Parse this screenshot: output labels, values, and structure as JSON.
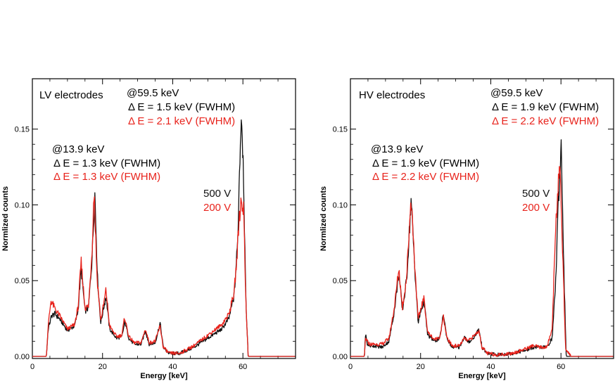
{
  "colors": {
    "series_500V": "#111111",
    "series_200V": "#e8231c",
    "axis": "#000000",
    "background": "#ffffff"
  },
  "chart_data": [
    {
      "type": "line",
      "title": "LV electrodes",
      "xlabel": "Energy [keV]",
      "ylabel": "Normlized counts",
      "xlim": [
        0,
        75
      ],
      "ylim": [
        0,
        0.18
      ],
      "x_ticks": [
        0,
        20,
        40,
        60
      ],
      "y_ticks": [
        "0.00",
        "0.05",
        "0.10",
        "0.15"
      ],
      "legend": [
        {
          "name": "500 V",
          "color": "#111111"
        },
        {
          "name": "200 V",
          "color": "#e8231c"
        }
      ],
      "annotations": {
        "peak_high": {
          "label": "@59.5 keV",
          "black": "Δ E = 1.5 keV (FWHM)",
          "red": "Δ E = 2.1 keV (FWHM)"
        },
        "peak_low": {
          "label": "@13.9 keV",
          "black": "Δ E = 1.3 keV (FWHM)",
          "red": "Δ E = 1.3 keV (FWHM)"
        }
      },
      "series": [
        {
          "name": "500 V",
          "color": "#111111",
          "x": [
            4.0,
            4.5,
            5.5,
            6.5,
            8,
            10,
            12,
            13,
            13.9,
            15,
            16,
            17,
            17.8,
            18.6,
            19.5,
            20.3,
            21,
            22,
            24,
            25.5,
            26.4,
            27.5,
            29,
            31,
            32.2,
            33.3,
            35,
            36.4,
            37.3,
            39,
            42,
            46,
            50,
            54,
            56,
            57.5,
            58.5,
            59.1,
            59.6,
            60.2,
            60.8,
            61.5,
            63,
            75
          ],
          "values": [
            0.0,
            0.018,
            0.027,
            0.028,
            0.024,
            0.017,
            0.02,
            0.03,
            0.058,
            0.03,
            0.032,
            0.065,
            0.108,
            0.05,
            0.022,
            0.032,
            0.04,
            0.018,
            0.012,
            0.013,
            0.023,
            0.012,
            0.008,
            0.008,
            0.017,
            0.008,
            0.009,
            0.022,
            0.006,
            0.002,
            0.002,
            0.006,
            0.012,
            0.018,
            0.025,
            0.04,
            0.075,
            0.13,
            0.163,
            0.12,
            0.04,
            0.0,
            0.0,
            0.0
          ]
        },
        {
          "name": "200 V",
          "color": "#e8231c",
          "x": [
            4.0,
            4.5,
            5.3,
            6.3,
            8,
            10,
            12,
            13,
            13.9,
            15,
            16,
            17,
            17.6,
            18.4,
            19.5,
            20.3,
            21,
            22,
            24,
            25.5,
            26.3,
            27.5,
            29,
            31,
            32.2,
            33.3,
            35,
            36.4,
            37.3,
            39,
            42,
            46,
            50,
            54,
            56,
            57.5,
            58.3,
            58.9,
            59.5,
            60.2,
            60.8,
            61.5,
            63,
            75
          ],
          "values": [
            0.0,
            0.02,
            0.037,
            0.032,
            0.026,
            0.018,
            0.021,
            0.032,
            0.062,
            0.032,
            0.033,
            0.07,
            0.111,
            0.053,
            0.024,
            0.034,
            0.044,
            0.02,
            0.013,
            0.014,
            0.026,
            0.013,
            0.009,
            0.009,
            0.018,
            0.009,
            0.01,
            0.02,
            0.006,
            0.002,
            0.002,
            0.007,
            0.014,
            0.021,
            0.028,
            0.042,
            0.065,
            0.09,
            0.103,
            0.098,
            0.04,
            0.0,
            0.0,
            0.0
          ]
        }
      ]
    },
    {
      "type": "line",
      "title": "HV electrodes",
      "xlabel": "Energy [keV]",
      "ylabel": "Normlized counts",
      "xlim": [
        0,
        75
      ],
      "ylim": [
        0,
        0.18
      ],
      "x_ticks": [
        0,
        20,
        40,
        60
      ],
      "y_ticks": [
        "0.00",
        "0.05",
        "0.10",
        "0.15"
      ],
      "legend": [
        {
          "name": "500 V",
          "color": "#111111"
        },
        {
          "name": "200 V",
          "color": "#e8231c"
        }
      ],
      "annotations": {
        "peak_high": {
          "label": "@59.5 keV",
          "black": "Δ E = 1.9 keV (FWHM)",
          "red": "Δ E = 2.2 keV (FWHM)"
        },
        "peak_low": {
          "label": "@13.9 keV",
          "black": "Δ E = 1.9 keV (FWHM)",
          "red": "Δ E = 2.2 keV (FWHM)"
        }
      },
      "series": [
        {
          "name": "500 V",
          "color": "#111111",
          "x": [
            4.0,
            4.3,
            4.8,
            5.5,
            7,
            9,
            11,
            12.5,
            13.8,
            14.8,
            16,
            17.3,
            18.3,
            19.3,
            20.3,
            21.0,
            22,
            24,
            25.5,
            26.5,
            27.5,
            29,
            31,
            32.5,
            33.5,
            35,
            36.6,
            37.5,
            39,
            42,
            46,
            50,
            52,
            54,
            56,
            57.5,
            58.5,
            59.4,
            60.1,
            60.8,
            61.5,
            63,
            75
          ],
          "values": [
            0.0,
            0.015,
            0.008,
            0.007,
            0.007,
            0.006,
            0.01,
            0.03,
            0.055,
            0.03,
            0.05,
            0.103,
            0.06,
            0.022,
            0.032,
            0.036,
            0.014,
            0.01,
            0.012,
            0.028,
            0.012,
            0.006,
            0.006,
            0.013,
            0.009,
            0.012,
            0.018,
            0.006,
            0.002,
            0.001,
            0.002,
            0.004,
            0.006,
            0.006,
            0.006,
            0.012,
            0.05,
            0.11,
            0.141,
            0.06,
            0.0,
            0.0,
            0.0
          ]
        },
        {
          "name": "200 V",
          "color": "#e8231c",
          "x": [
            4.0,
            4.3,
            4.8,
            5.5,
            7,
            9,
            11,
            12.5,
            13.8,
            14.8,
            16,
            17.3,
            18.3,
            19.3,
            20.3,
            21.0,
            22,
            24,
            25.5,
            26.5,
            27.5,
            29,
            31,
            32.5,
            33.5,
            35,
            36.6,
            37.5,
            39,
            42,
            46,
            50,
            52,
            54,
            56,
            57.5,
            58.3,
            59.0,
            59.7,
            60.5,
            61.3,
            63,
            75
          ],
          "values": [
            0.0,
            0.012,
            0.01,
            0.008,
            0.008,
            0.008,
            0.012,
            0.032,
            0.058,
            0.032,
            0.052,
            0.106,
            0.062,
            0.024,
            0.034,
            0.038,
            0.016,
            0.011,
            0.013,
            0.026,
            0.012,
            0.007,
            0.007,
            0.012,
            0.01,
            0.013,
            0.017,
            0.006,
            0.002,
            0.001,
            0.002,
            0.005,
            0.007,
            0.006,
            0.006,
            0.018,
            0.075,
            0.11,
            0.12,
            0.07,
            0.005,
            0.0,
            0.0
          ]
        }
      ]
    }
  ]
}
